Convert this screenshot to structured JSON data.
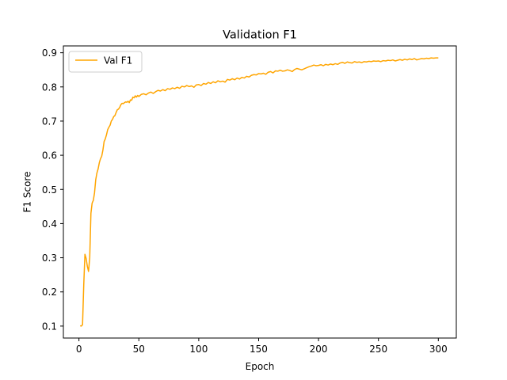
{
  "chart_data": {
    "type": "line",
    "title": "Validation F1",
    "xlabel": "Epoch",
    "ylabel": "F1 Score",
    "xlim": [
      -13,
      315
    ],
    "ylim": [
      0.065,
      0.92
    ],
    "xticks": [
      0,
      50,
      100,
      150,
      200,
      250,
      300
    ],
    "yticks": [
      0.1,
      0.2,
      0.3,
      0.4,
      0.5,
      0.6,
      0.7,
      0.8,
      0.9
    ],
    "grid": false,
    "legend": {
      "position": "upper-left"
    },
    "series": [
      {
        "name": "Val F1",
        "color": "#ffa500",
        "points": [
          [
            1,
            0.101
          ],
          [
            2,
            0.1
          ],
          [
            3,
            0.104
          ],
          [
            4,
            0.22
          ],
          [
            5,
            0.31
          ],
          [
            6,
            0.298
          ],
          [
            7,
            0.275
          ],
          [
            8,
            0.26
          ],
          [
            9,
            0.3
          ],
          [
            10,
            0.43
          ],
          [
            11,
            0.46
          ],
          [
            12,
            0.468
          ],
          [
            13,
            0.49
          ],
          [
            14,
            0.528
          ],
          [
            15,
            0.548
          ],
          [
            16,
            0.56
          ],
          [
            17,
            0.578
          ],
          [
            18,
            0.59
          ],
          [
            19,
            0.597
          ],
          [
            20,
            0.615
          ],
          [
            21,
            0.64
          ],
          [
            22,
            0.648
          ],
          [
            23,
            0.66
          ],
          [
            24,
            0.675
          ],
          [
            25,
            0.682
          ],
          [
            26,
            0.688
          ],
          [
            27,
            0.7
          ],
          [
            28,
            0.705
          ],
          [
            29,
            0.713
          ],
          [
            30,
            0.716
          ],
          [
            31,
            0.725
          ],
          [
            32,
            0.733
          ],
          [
            33,
            0.735
          ],
          [
            34,
            0.74
          ],
          [
            35,
            0.748
          ],
          [
            36,
            0.752
          ],
          [
            37,
            0.751
          ],
          [
            38,
            0.754
          ],
          [
            39,
            0.756
          ],
          [
            40,
            0.755
          ],
          [
            41,
            0.758
          ],
          [
            42,
            0.754
          ],
          [
            43,
            0.762
          ],
          [
            44,
            0.761
          ],
          [
            45,
            0.77
          ],
          [
            46,
            0.768
          ],
          [
            47,
            0.774
          ],
          [
            48,
            0.77
          ],
          [
            49,
            0.775
          ],
          [
            50,
            0.772
          ],
          [
            52,
            0.778
          ],
          [
            54,
            0.78
          ],
          [
            56,
            0.777
          ],
          [
            58,
            0.782
          ],
          [
            60,
            0.785
          ],
          [
            62,
            0.781
          ],
          [
            64,
            0.786
          ],
          [
            66,
            0.79
          ],
          [
            68,
            0.788
          ],
          [
            70,
            0.792
          ],
          [
            72,
            0.789
          ],
          [
            74,
            0.795
          ],
          [
            76,
            0.793
          ],
          [
            78,
            0.797
          ],
          [
            80,
            0.795
          ],
          [
            82,
            0.799
          ],
          [
            84,
            0.796
          ],
          [
            86,
            0.802
          ],
          [
            88,
            0.8
          ],
          [
            90,
            0.804
          ],
          [
            92,
            0.801
          ],
          [
            94,
            0.803
          ],
          [
            96,
            0.799
          ],
          [
            98,
            0.806
          ],
          [
            100,
            0.807
          ],
          [
            102,
            0.804
          ],
          [
            104,
            0.81
          ],
          [
            106,
            0.808
          ],
          [
            108,
            0.813
          ],
          [
            110,
            0.81
          ],
          [
            112,
            0.815
          ],
          [
            114,
            0.812
          ],
          [
            116,
            0.818
          ],
          [
            118,
            0.815
          ],
          [
            120,
            0.817
          ],
          [
            122,
            0.814
          ],
          [
            124,
            0.822
          ],
          [
            126,
            0.82
          ],
          [
            128,
            0.824
          ],
          [
            130,
            0.821
          ],
          [
            132,
            0.826
          ],
          [
            134,
            0.823
          ],
          [
            136,
            0.828
          ],
          [
            138,
            0.826
          ],
          [
            140,
            0.831
          ],
          [
            142,
            0.829
          ],
          [
            144,
            0.834
          ],
          [
            146,
            0.836
          ],
          [
            148,
            0.835
          ],
          [
            150,
            0.839
          ],
          [
            152,
            0.838
          ],
          [
            154,
            0.84
          ],
          [
            156,
            0.837
          ],
          [
            158,
            0.843
          ],
          [
            160,
            0.845
          ],
          [
            162,
            0.841
          ],
          [
            164,
            0.847
          ],
          [
            166,
            0.846
          ],
          [
            168,
            0.849
          ],
          [
            170,
            0.846
          ],
          [
            172,
            0.847
          ],
          [
            174,
            0.85
          ],
          [
            176,
            0.848
          ],
          [
            178,
            0.845
          ],
          [
            180,
            0.851
          ],
          [
            182,
            0.854
          ],
          [
            184,
            0.852
          ],
          [
            186,
            0.85
          ],
          [
            188,
            0.853
          ],
          [
            190,
            0.856
          ],
          [
            192,
            0.859
          ],
          [
            194,
            0.861
          ],
          [
            196,
            0.864
          ],
          [
            198,
            0.862
          ],
          [
            200,
            0.863
          ],
          [
            202,
            0.865
          ],
          [
            204,
            0.862
          ],
          [
            206,
            0.866
          ],
          [
            208,
            0.864
          ],
          [
            210,
            0.867
          ],
          [
            212,
            0.865
          ],
          [
            214,
            0.868
          ],
          [
            216,
            0.866
          ],
          [
            218,
            0.87
          ],
          [
            220,
            0.872
          ],
          [
            222,
            0.869
          ],
          [
            224,
            0.873
          ],
          [
            226,
            0.871
          ],
          [
            228,
            0.87
          ],
          [
            230,
            0.874
          ],
          [
            232,
            0.872
          ],
          [
            234,
            0.873
          ],
          [
            236,
            0.871
          ],
          [
            238,
            0.874
          ],
          [
            240,
            0.873
          ],
          [
            242,
            0.875
          ],
          [
            244,
            0.874
          ],
          [
            246,
            0.876
          ],
          [
            248,
            0.875
          ],
          [
            250,
            0.876
          ],
          [
            252,
            0.874
          ],
          [
            254,
            0.877
          ],
          [
            256,
            0.876
          ],
          [
            258,
            0.878
          ],
          [
            260,
            0.877
          ],
          [
            262,
            0.879
          ],
          [
            264,
            0.876
          ],
          [
            266,
            0.878
          ],
          [
            268,
            0.88
          ],
          [
            270,
            0.878
          ],
          [
            272,
            0.881
          ],
          [
            274,
            0.879
          ],
          [
            276,
            0.882
          ],
          [
            278,
            0.88
          ],
          [
            280,
            0.883
          ],
          [
            282,
            0.879
          ],
          [
            284,
            0.881
          ],
          [
            286,
            0.883
          ],
          [
            288,
            0.882
          ],
          [
            290,
            0.884
          ],
          [
            292,
            0.883
          ],
          [
            294,
            0.885
          ],
          [
            296,
            0.884
          ],
          [
            298,
            0.885
          ],
          [
            300,
            0.885
          ]
        ]
      }
    ]
  }
}
